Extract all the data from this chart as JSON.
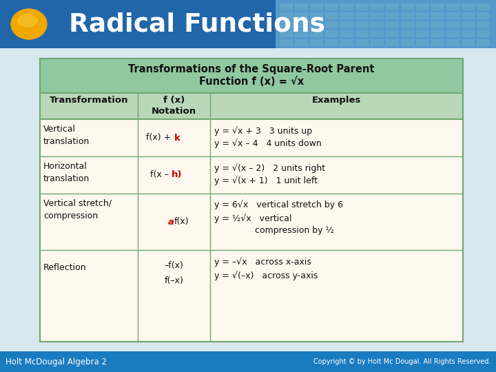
{
  "title": "Radical Functions",
  "header_bg_left": "#2266AA",
  "header_bg_right": "#5599CC",
  "header_text_color": "#FFFFFF",
  "oval_color": "#F0A800",
  "oval_highlight": "#F8CC40",
  "table_title_line1": "Transformations of the Square-Root Parent",
  "table_title_line2": "Function f (x) = √x",
  "table_title_bg": "#90C8A0",
  "table_col_header_bg": "#B8D8B8",
  "table_body_bg": "#FEF8EE",
  "table_border_color": "#70A870",
  "bg_color": "#C8DCE8",
  "col_headers": [
    "Transformation",
    "f (x)\nNotation",
    "Examples"
  ],
  "footer_bg": "#1A7BBF",
  "footer_left": "Holt McDougal Algebra 2",
  "footer_right": "Copyright © by Holt Mc Dougal. All Rights Reserved.",
  "footer_text_color": "#FFFFFF",
  "red_color": "#CC0000",
  "black_color": "#111111"
}
